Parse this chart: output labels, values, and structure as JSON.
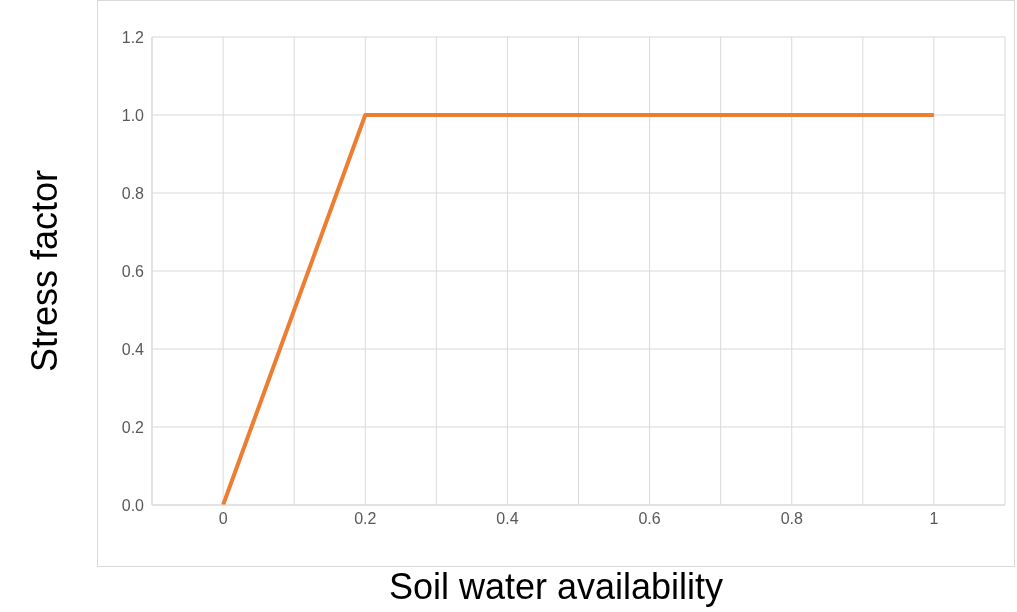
{
  "chart_data": {
    "type": "line",
    "xlabel": "Soil water availability",
    "ylabel": "Stress factor",
    "x": [
      0,
      0.2,
      1
    ],
    "series": [
      {
        "color": "#ed7d31",
        "values": [
          0,
          1,
          1
        ]
      }
    ],
    "xlim": [
      -0.1,
      1.1
    ],
    "xticks": [
      {
        "value": -0.1,
        "label": null
      },
      0,
      {
        "value": 0.1,
        "label": null
      },
      0.2,
      {
        "value": 0.3,
        "label": null
      },
      0.4,
      {
        "value": 0.5,
        "label": null
      },
      0.6,
      {
        "value": 0.7,
        "label": null
      },
      0.8,
      {
        "value": 0.9,
        "label": null
      },
      1,
      {
        "value": 1.1,
        "label": null
      }
    ],
    "ylim": [
      0,
      1.2
    ],
    "yticks": [
      {
        "value": 0,
        "label": "0.0"
      },
      {
        "value": 0.2,
        "label": "0.2"
      },
      {
        "value": 0.4,
        "label": "0.4"
      },
      {
        "value": 0.6,
        "label": "0.6"
      },
      {
        "value": 0.8,
        "label": "0.8"
      },
      {
        "value": 1,
        "label": "1.0"
      },
      {
        "value": 1.2,
        "label": "1.2"
      }
    ],
    "grid": true,
    "marker": "none",
    "line_style": "solid",
    "legend": false
  }
}
